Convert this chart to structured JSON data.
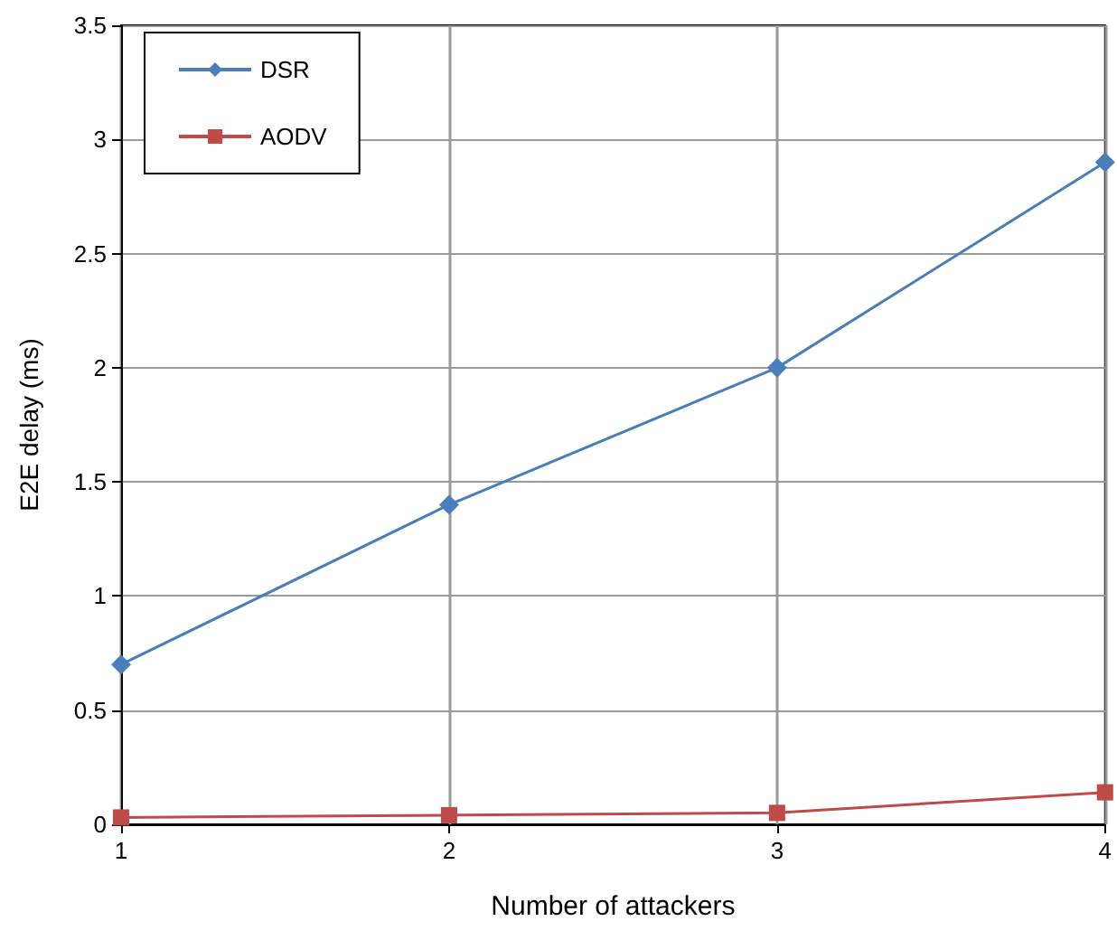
{
  "chart_data": {
    "type": "line",
    "xlabel": "Number of attackers",
    "ylabel": "E2E delay (ms)",
    "x": [
      1,
      2,
      3,
      4
    ],
    "series": [
      {
        "name": "DSR",
        "color": "#4a7ebb",
        "marker": "diamond",
        "values": [
          0.7,
          1.4,
          2.0,
          2.9
        ]
      },
      {
        "name": "AODV",
        "color": "#be4b48",
        "marker": "square",
        "values": [
          0.03,
          0.04,
          0.05,
          0.14
        ]
      }
    ],
    "xlim": [
      1,
      4
    ],
    "xticks": [
      1,
      2,
      3,
      4
    ],
    "ylim": [
      0,
      3.5
    ],
    "yticks": [
      0,
      0.5,
      1,
      1.5,
      2,
      2.5,
      3,
      3.5
    ],
    "grid": true,
    "legend": "top left",
    "line_style": "solid"
  }
}
